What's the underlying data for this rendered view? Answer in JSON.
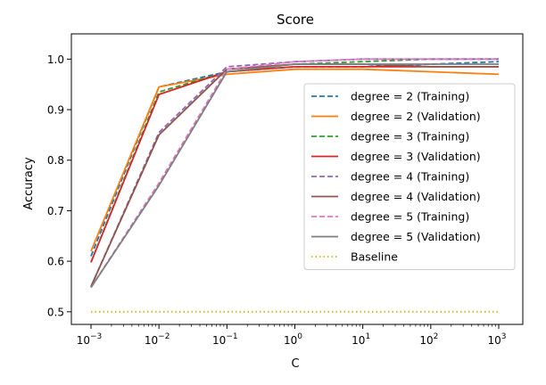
{
  "chart_data": {
    "type": "line",
    "title": "Score",
    "xlabel": "C",
    "ylabel": "Accuracy",
    "x_scale": "log",
    "x": [
      0.001,
      0.01,
      0.1,
      1,
      10,
      100,
      1000
    ],
    "x_ticks": [
      {
        "value": 0.001,
        "base": "10",
        "exp": "−3"
      },
      {
        "value": 0.01,
        "base": "10",
        "exp": "−2"
      },
      {
        "value": 0.1,
        "base": "10",
        "exp": "−1"
      },
      {
        "value": 1,
        "base": "10",
        "exp": "0"
      },
      {
        "value": 10,
        "base": "10",
        "exp": "1"
      },
      {
        "value": 100,
        "base": "10",
        "exp": "2"
      },
      {
        "value": 1000,
        "base": "10",
        "exp": "3"
      }
    ],
    "y_ticks": [
      "0.5",
      "0.6",
      "0.7",
      "0.8",
      "0.9",
      "1.0"
    ],
    "ylim": [
      0.475,
      1.05
    ],
    "grid": false,
    "legend_position": "center-right",
    "series": [
      {
        "name": "degree = 2 (Training)",
        "color": "#1f77b4",
        "dash": "dashed",
        "values": [
          0.61,
          0.945,
          0.975,
          0.985,
          0.985,
          0.99,
          0.995
        ]
      },
      {
        "name": "degree = 2 (Validation)",
        "color": "#ff7f0e",
        "dash": "solid",
        "values": [
          0.62,
          0.945,
          0.97,
          0.98,
          0.98,
          0.975,
          0.97
        ]
      },
      {
        "name": "degree = 3 (Training)",
        "color": "#2ca02c",
        "dash": "dashed",
        "values": [
          0.598,
          0.935,
          0.975,
          0.99,
          0.995,
          1.0,
          1.0
        ]
      },
      {
        "name": "degree = 3 (Validation)",
        "color": "#d62728",
        "dash": "solid",
        "values": [
          0.598,
          0.93,
          0.975,
          0.985,
          0.985,
          0.985,
          0.985
        ]
      },
      {
        "name": "degree = 4 (Training)",
        "color": "#9467bd",
        "dash": "dashed",
        "values": [
          0.55,
          0.855,
          0.985,
          0.995,
          1.0,
          1.0,
          1.0
        ]
      },
      {
        "name": "degree = 4 (Validation)",
        "color": "#8c564b",
        "dash": "solid",
        "values": [
          0.55,
          0.85,
          0.98,
          0.99,
          0.99,
          0.985,
          0.985
        ]
      },
      {
        "name": "degree = 5 (Training)",
        "color": "#e377c2",
        "dash": "dashed",
        "values": [
          0.548,
          0.755,
          0.98,
          0.995,
          1.0,
          1.0,
          1.0
        ]
      },
      {
        "name": "degree = 5 (Validation)",
        "color": "#7f7f7f",
        "dash": "solid",
        "values": [
          0.548,
          0.75,
          0.975,
          0.99,
          0.99,
          0.99,
          0.99
        ]
      },
      {
        "name": "Baseline",
        "color": "#bcbd22",
        "dash": "dotted",
        "values": [
          0.5,
          0.5,
          0.5,
          0.5,
          0.5,
          0.5,
          0.5
        ]
      }
    ]
  }
}
